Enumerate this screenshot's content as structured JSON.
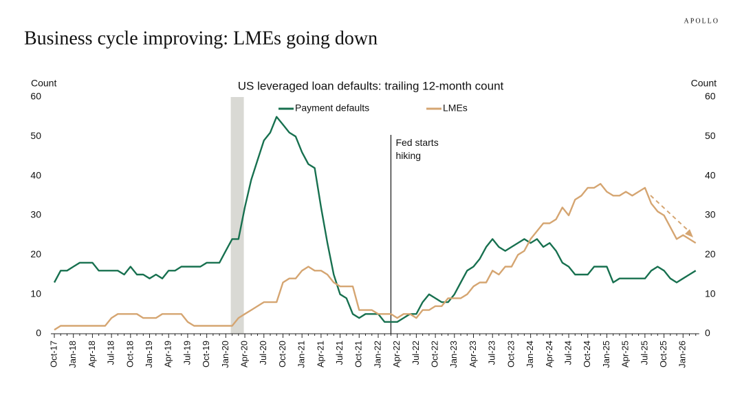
{
  "header": {
    "title": "Business cycle improving: LMEs going down",
    "brand": "APOLLO"
  },
  "chart_data": {
    "type": "line",
    "title": "US leveraged loan defaults: trailing 12-month count",
    "y_label": "Count",
    "y2_label": "Count",
    "annotation": "Fed starts\nhiking",
    "categories": [
      "Oct-17",
      null,
      null,
      "Jan-18",
      null,
      null,
      "Apr-18",
      null,
      null,
      "Jul-18",
      null,
      null,
      "Oct-18",
      null,
      null,
      "Jan-19",
      null,
      null,
      "Apr-19",
      null,
      null,
      "Jul-19",
      null,
      null,
      "Oct-19",
      null,
      null,
      "Jan-20",
      null,
      null,
      "Apr-20",
      null,
      null,
      "Jul-20",
      null,
      null,
      "Oct-20",
      null,
      null,
      "Jan-21",
      null,
      null,
      "Apr-21",
      null,
      null,
      "Jul-21",
      null,
      null,
      "Oct-21",
      null,
      null,
      "Jan-22",
      null,
      null,
      "Apr-22",
      null,
      null,
      "Jul-22",
      null,
      null,
      "Oct-22",
      null,
      null,
      "Jan-23",
      null,
      null,
      "Apr-23",
      null,
      null,
      "Jul-23",
      null,
      null,
      "Oct-23",
      null,
      null,
      "Jan-24",
      null,
      null,
      "Apr-24",
      null,
      null,
      "Jul-24",
      null,
      null,
      "Oct-24",
      null,
      null,
      "Jan-25",
      null,
      null,
      "Apr-25",
      null,
      null,
      "Jul-25",
      null,
      null,
      "Oct-25",
      null,
      null,
      "Jan-26",
      null,
      null
    ],
    "series": [
      {
        "name": "Payment defaults",
        "color": "#17704f",
        "values": [
          13,
          16,
          16,
          17,
          18,
          18,
          18,
          16,
          16,
          16,
          16,
          15,
          17,
          15,
          15,
          14,
          15,
          14,
          16,
          16,
          17,
          17,
          17,
          17,
          18,
          18,
          18,
          21,
          24,
          24,
          32,
          39,
          44,
          49,
          51,
          55,
          53,
          51,
          50,
          46,
          43,
          42,
          32,
          23,
          15,
          10,
          9,
          5,
          4,
          5,
          5,
          5,
          3,
          3,
          3,
          4,
          5,
          5,
          8,
          10,
          9,
          8,
          8,
          10,
          13,
          16,
          17,
          19,
          22,
          24,
          22,
          21,
          22,
          23,
          24,
          23,
          24,
          22,
          23,
          21,
          18,
          17,
          15,
          15,
          15,
          17,
          17,
          17,
          13,
          14,
          14,
          14,
          14,
          14,
          16,
          17,
          16,
          14,
          13,
          14,
          15,
          16
        ]
      },
      {
        "name": "LMEs",
        "color": "#d5a571",
        "axis": "y2",
        "values": [
          1,
          2,
          2,
          2,
          2,
          2,
          2,
          2,
          2,
          4,
          5,
          5,
          5,
          5,
          4,
          4,
          4,
          5,
          5,
          5,
          5,
          3,
          2,
          2,
          2,
          2,
          2,
          2,
          2,
          4,
          5,
          6,
          7,
          8,
          8,
          8,
          13,
          14,
          14,
          16,
          17,
          16,
          16,
          15,
          13,
          12,
          12,
          12,
          6,
          6,
          6,
          5,
          5,
          5,
          4,
          5,
          5,
          4,
          6,
          6,
          7,
          7,
          9,
          9,
          9,
          10,
          12,
          13,
          13,
          16,
          15,
          17,
          17,
          20,
          21,
          24,
          26,
          28,
          28,
          29,
          32,
          30,
          34,
          35,
          37,
          37,
          38,
          36,
          35,
          35,
          36,
          35,
          36,
          37,
          33,
          31,
          30,
          27,
          24,
          25,
          24,
          23
        ]
      }
    ],
    "ylim": [
      0,
      60
    ],
    "yticks": [
      0,
      10,
      20,
      30,
      40,
      50,
      60
    ],
    "y2lim": [
      0,
      60
    ],
    "y2ticks": [
      0,
      10,
      20,
      30,
      40,
      50,
      60
    ],
    "grid": false,
    "legend": "top"
  }
}
